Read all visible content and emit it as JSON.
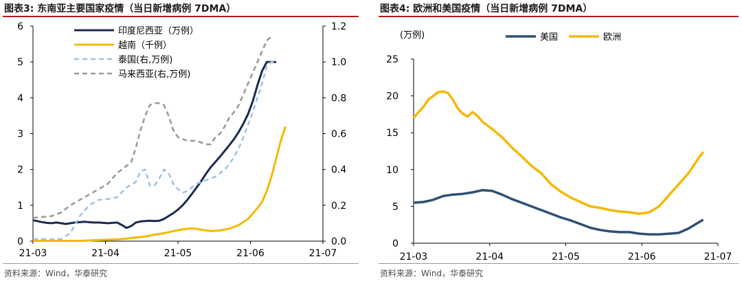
{
  "left": {
    "title": "图表3:  东南亚主要国家疫情（当日新增病例 7DMA）",
    "source": "资料来源：Wind，华泰研究",
    "chart_data": {
      "type": "line",
      "x_tick_labels": [
        "21-03",
        "21-04",
        "21-05",
        "21-06",
        "21-07"
      ],
      "left_axis": {
        "ylim": [
          0,
          6
        ],
        "ticks": [
          "0",
          "1",
          "2",
          "3",
          "4",
          "5",
          "6"
        ]
      },
      "right_axis": {
        "ylim": [
          0,
          1.2
        ],
        "ticks": [
          "0.0",
          "0.2",
          "0.4",
          "0.6",
          "0.8",
          "1.0",
          "1.2"
        ]
      },
      "legend_position": "top-left",
      "series": [
        {
          "name": "印度尼西亚（万例）",
          "axis": "left",
          "color": "#1b2a4e",
          "style": "solid",
          "x": [
            0,
            2,
            4,
            6,
            8,
            10,
            12,
            14,
            16,
            18,
            20,
            22,
            24,
            26,
            28,
            30,
            32,
            34,
            36,
            38,
            40,
            42,
            44,
            46,
            48,
            50,
            52,
            54,
            56,
            58,
            60,
            62,
            64,
            66,
            68,
            70,
            72,
            74,
            76,
            78,
            80,
            82,
            84,
            86,
            88,
            90,
            92,
            94,
            96,
            98,
            100,
            102,
            104,
            106,
            108,
            110,
            112,
            114,
            116,
            118,
            120,
            122,
            124
          ],
          "y": [
            0.58,
            0.56,
            0.53,
            0.51,
            0.5,
            0.52,
            0.5,
            0.48,
            0.5,
            0.52,
            0.53,
            0.54,
            0.53,
            0.52,
            0.52,
            0.51,
            0.5,
            0.51,
            0.52,
            0.45,
            0.37,
            0.42,
            0.52,
            0.55,
            0.56,
            0.57,
            0.56,
            0.57,
            0.62,
            0.7,
            0.78,
            0.88,
            1.0,
            1.15,
            1.32,
            1.5,
            1.68,
            1.88,
            2.06,
            2.21,
            2.36,
            2.52,
            2.68,
            2.85,
            3.05,
            3.28,
            3.55,
            3.9,
            4.35,
            4.75,
            5.0,
            5.0,
            5.0,
            null,
            null,
            null,
            null,
            null,
            null,
            null,
            null,
            null,
            null
          ]
        },
        {
          "name": "越南（千例）",
          "axis": "left",
          "color": "#f5b800",
          "style": "solid",
          "x": [
            0,
            4,
            8,
            12,
            16,
            20,
            24,
            28,
            32,
            36,
            40,
            44,
            48,
            52,
            56,
            60,
            64,
            68,
            72,
            76,
            80,
            84,
            88,
            92,
            96,
            98,
            100,
            102,
            104,
            106,
            108,
            110,
            112,
            114,
            116,
            118,
            120,
            122,
            124
          ],
          "y": [
            0.01,
            0.01,
            0.01,
            0.01,
            0.01,
            0.01,
            0.02,
            0.03,
            0.04,
            0.05,
            0.07,
            0.1,
            0.13,
            0.18,
            0.22,
            0.28,
            0.33,
            0.36,
            0.32,
            0.28,
            0.3,
            0.35,
            0.45,
            0.62,
            0.92,
            1.1,
            1.4,
            1.8,
            2.3,
            2.8,
            3.2,
            null,
            null,
            null,
            null,
            null,
            null,
            null,
            null
          ]
        },
        {
          "name": "泰国(右,万例)",
          "axis": "right",
          "color": "#9dc3e6",
          "style": "dashed",
          "x": [
            0,
            4,
            8,
            12,
            16,
            20,
            24,
            28,
            32,
            36,
            40,
            44,
            46,
            48,
            50,
            52,
            54,
            56,
            58,
            60,
            62,
            64,
            66,
            68,
            70,
            72,
            74,
            76,
            78,
            80,
            82,
            84,
            86,
            88,
            90,
            92,
            94,
            96,
            98,
            100,
            102,
            104,
            106,
            108
          ],
          "y": [
            0.012,
            0.012,
            0.01,
            0.012,
            0.045,
            0.14,
            0.2,
            0.23,
            0.235,
            0.245,
            0.3,
            0.33,
            0.39,
            0.4,
            0.31,
            0.31,
            0.35,
            0.4,
            0.38,
            0.32,
            0.29,
            0.27,
            0.28,
            0.3,
            0.32,
            0.33,
            0.34,
            0.35,
            0.36,
            0.38,
            0.4,
            0.43,
            0.47,
            0.52,
            0.58,
            0.65,
            0.72,
            0.8,
            0.88,
            0.98,
            1.0,
            1.0,
            null,
            null
          ]
        },
        {
          "name": "马来西亚(右,万例)",
          "axis": "right",
          "color": "#9a9a9a",
          "style": "dashed",
          "x": [
            0,
            4,
            8,
            12,
            16,
            20,
            24,
            28,
            32,
            36,
            40,
            42,
            44,
            46,
            48,
            50,
            52,
            54,
            56,
            58,
            60,
            62,
            64,
            66,
            68,
            70,
            72,
            74,
            76,
            78,
            80,
            82,
            84,
            86,
            88,
            90,
            92,
            94,
            96,
            98,
            100,
            102,
            104,
            106,
            108
          ],
          "y": [
            0.13,
            0.135,
            0.14,
            0.16,
            0.2,
            0.23,
            0.26,
            0.29,
            0.32,
            0.38,
            0.42,
            0.44,
            0.52,
            0.62,
            0.7,
            0.76,
            0.77,
            0.77,
            0.76,
            0.7,
            0.62,
            0.58,
            0.57,
            0.56,
            0.56,
            0.56,
            0.55,
            0.54,
            0.54,
            0.58,
            0.6,
            0.64,
            0.69,
            0.72,
            0.76,
            0.82,
            0.88,
            0.94,
            1.0,
            1.06,
            1.12,
            1.14,
            null,
            null,
            null
          ]
        }
      ]
    }
  },
  "right": {
    "title": "图表4:  欧洲和美国疫情（当日新增病例 7DMA）",
    "source": "资料来源：Wind，华泰研究",
    "chart_data": {
      "type": "line",
      "unit_label": "(万例)",
      "ylim": [
        0,
        25
      ],
      "y_ticks": [
        "0",
        "5",
        "10",
        "15",
        "20",
        "25"
      ],
      "x_tick_labels": [
        "21-03",
        "21-04",
        "21-05",
        "21-06",
        "21-07"
      ],
      "legend_position": "top",
      "series": [
        {
          "name": "美国",
          "color": "#2e4f74",
          "x": [
            0,
            4,
            8,
            12,
            16,
            20,
            24,
            28,
            32,
            36,
            40,
            44,
            48,
            52,
            56,
            60,
            64,
            68,
            72,
            76,
            80,
            84,
            88,
            92,
            96,
            100,
            104,
            108,
            112,
            116,
            118
          ],
          "y": [
            5.5,
            5.6,
            5.9,
            6.4,
            6.6,
            6.7,
            6.9,
            7.2,
            7.1,
            6.6,
            6.0,
            5.5,
            5.0,
            4.5,
            4.0,
            3.5,
            3.1,
            2.6,
            2.1,
            1.8,
            1.6,
            1.5,
            1.5,
            1.3,
            1.2,
            1.2,
            1.3,
            1.4,
            2.0,
            2.8,
            3.2
          ]
        },
        {
          "name": "欧洲",
          "color": "#f5b800",
          "x": [
            0,
            2,
            4,
            6,
            8,
            10,
            12,
            14,
            16,
            18,
            20,
            22,
            24,
            26,
            28,
            30,
            32,
            36,
            40,
            44,
            48,
            52,
            56,
            60,
            64,
            68,
            72,
            76,
            80,
            84,
            88,
            92,
            96,
            100,
            104,
            108,
            112,
            116,
            118
          ],
          "y": [
            17.0,
            17.8,
            18.5,
            19.5,
            20.0,
            20.5,
            20.6,
            20.4,
            19.5,
            18.3,
            17.6,
            17.2,
            17.8,
            17.3,
            16.5,
            16.0,
            15.5,
            14.4,
            13.0,
            11.8,
            10.5,
            9.5,
            8.0,
            7.0,
            6.2,
            5.6,
            5.0,
            4.8,
            4.5,
            4.3,
            4.2,
            4.0,
            4.2,
            5.0,
            6.5,
            8.0,
            9.5,
            11.5,
            12.4
          ]
        }
      ]
    }
  }
}
